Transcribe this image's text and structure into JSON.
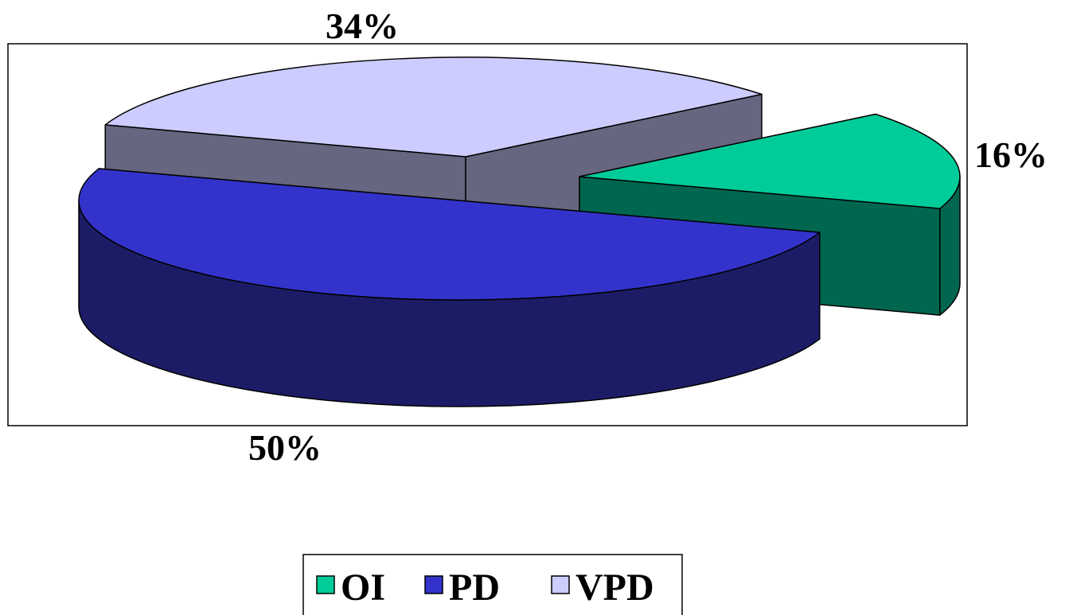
{
  "chart_data": {
    "type": "pie",
    "categories": [
      "OI",
      "PD",
      "VPD"
    ],
    "values": [
      16,
      50,
      34
    ],
    "value_labels": [
      "16%",
      "50%",
      "34%"
    ],
    "colors": [
      "#00cc99",
      "#3333cc",
      "#ccccff"
    ],
    "side_colors": [
      "#006650",
      "#1c1c66",
      "#666680"
    ],
    "legend": "bottom"
  }
}
